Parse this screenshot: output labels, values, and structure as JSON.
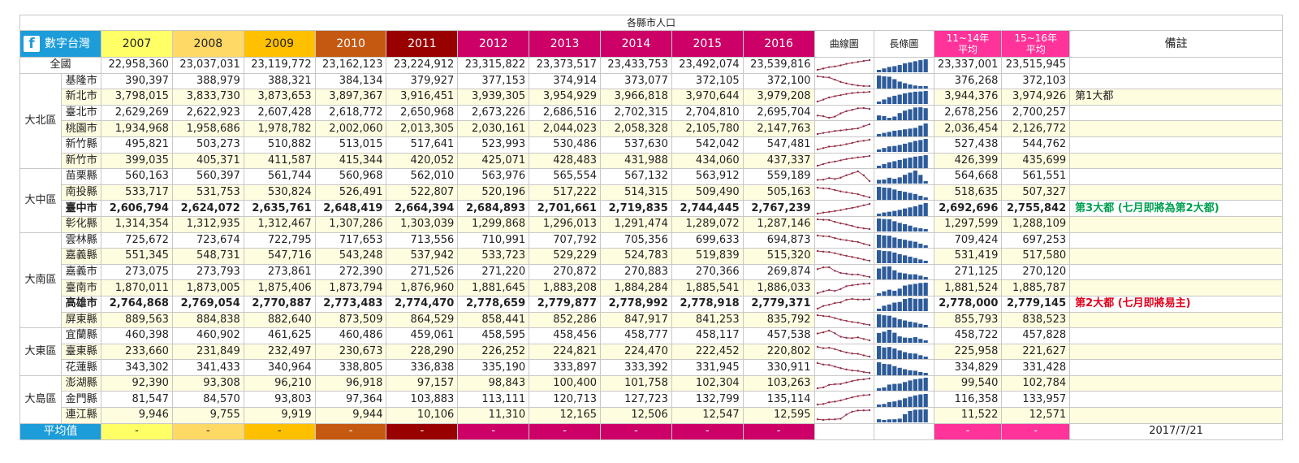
{
  "title": "各縣市人口",
  "brand": "數字台灣",
  "years": [
    "2007",
    "2008",
    "2009",
    "2010",
    "2011",
    "2012",
    "2013",
    "2014",
    "2015",
    "2016"
  ],
  "year_colors": [
    "#ffff66",
    "#ffd966",
    "#ffc000",
    "#c65911",
    "#990000",
    "#cc0066",
    "#cc0066",
    "#cc0066",
    "#cc0066",
    "#cc0066"
  ],
  "year_text_colors": [
    "#222",
    "#222",
    "#222",
    "#fff",
    "#fff",
    "#fff",
    "#fff",
    "#fff",
    "#fff",
    "#fff"
  ],
  "col_line": "曲線圖",
  "col_bar": "長條圖",
  "col_avg1": [
    "11~14年",
    "平均"
  ],
  "col_avg2": [
    "15~16年",
    "平均"
  ],
  "col_note": "備註",
  "accent_avg": "#ff3399",
  "brand_color": "#1c9dd9",
  "rows": [
    {
      "region": "全國",
      "name": "全國",
      "values": [
        22958360,
        23037031,
        23119772,
        23162123,
        23224912,
        23315822,
        23373517,
        23433753,
        23492074,
        23539816
      ],
      "avg1": "23,337,001",
      "avg2": "23,515,945",
      "note": ""
    },
    {
      "region": "大北區",
      "name": "基隆市",
      "values": [
        390397,
        388979,
        388321,
        384134,
        379927,
        377153,
        374914,
        373077,
        372105,
        372100
      ],
      "avg1": "376,268",
      "avg2": "372,103",
      "note": ""
    },
    {
      "region": "大北區",
      "name": "新北市",
      "values": [
        3798015,
        3833730,
        3873653,
        3897367,
        3916451,
        3939305,
        3954929,
        3966818,
        3970644,
        3979208
      ],
      "avg1": "3,944,376",
      "avg2": "3,974,926",
      "note": "第1大都"
    },
    {
      "region": "大北區",
      "name": "臺北市",
      "values": [
        2629269,
        2622923,
        2607428,
        2618772,
        2650968,
        2673226,
        2686516,
        2702315,
        2704810,
        2695704
      ],
      "avg1": "2,678,256",
      "avg2": "2,700,257",
      "note": ""
    },
    {
      "region": "大北區",
      "name": "桃園市",
      "values": [
        1934968,
        1958686,
        1978782,
        2002060,
        2013305,
        2030161,
        2044023,
        2058328,
        2105780,
        2147763
      ],
      "avg1": "2,036,454",
      "avg2": "2,126,772",
      "note": ""
    },
    {
      "region": "大北區",
      "name": "新竹縣",
      "values": [
        495821,
        503273,
        510882,
        513015,
        517641,
        523993,
        530486,
        537630,
        542042,
        547481
      ],
      "avg1": "527,438",
      "avg2": "544,762",
      "note": ""
    },
    {
      "region": "大北區",
      "name": "新竹市",
      "values": [
        399035,
        405371,
        411587,
        415344,
        420052,
        425071,
        428483,
        431988,
        434060,
        437337
      ],
      "avg1": "426,399",
      "avg2": "435,699",
      "note": ""
    },
    {
      "region": "大中區",
      "name": "苗栗縣",
      "values": [
        560163,
        560397,
        561744,
        560968,
        562010,
        563976,
        565554,
        567132,
        563912,
        559189
      ],
      "avg1": "564,668",
      "avg2": "561,551",
      "note": ""
    },
    {
      "region": "大中區",
      "name": "南投縣",
      "values": [
        533717,
        531753,
        530824,
        526491,
        522807,
        520196,
        517222,
        514315,
        509490,
        505163
      ],
      "avg1": "518,635",
      "avg2": "507,327",
      "note": ""
    },
    {
      "region": "大中區",
      "name": "臺中市",
      "values": [
        2606794,
        2624072,
        2635761,
        2648419,
        2664394,
        2684893,
        2701661,
        2719835,
        2744445,
        2767239
      ],
      "avg1": "2,692,696",
      "avg2": "2,755,842",
      "note": "第3大都 (七月即將為第2大都)",
      "bold": true,
      "note_color": "#00a050"
    },
    {
      "region": "大中區",
      "name": "彰化縣",
      "values": [
        1314354,
        1312935,
        1312467,
        1307286,
        1303039,
        1299868,
        1296013,
        1291474,
        1289072,
        1287146
      ],
      "avg1": "1,297,599",
      "avg2": "1,288,109",
      "note": ""
    },
    {
      "region": "大南區",
      "name": "雲林縣",
      "values": [
        725672,
        723674,
        722795,
        717653,
        713556,
        710991,
        707792,
        705356,
        699633,
        694873
      ],
      "avg1": "709,424",
      "avg2": "697,253",
      "note": ""
    },
    {
      "region": "大南區",
      "name": "嘉義縣",
      "values": [
        551345,
        548731,
        547716,
        543248,
        537942,
        533723,
        529229,
        524783,
        519839,
        515320
      ],
      "avg1": "531,419",
      "avg2": "517,580",
      "note": ""
    },
    {
      "region": "大南區",
      "name": "嘉義市",
      "values": [
        273075,
        273793,
        273861,
        272390,
        271526,
        271220,
        270872,
        270883,
        270366,
        269874
      ],
      "avg1": "271,125",
      "avg2": "270,120",
      "note": ""
    },
    {
      "region": "大南區",
      "name": "臺南市",
      "values": [
        1870011,
        1873005,
        1875406,
        1873794,
        1876960,
        1881645,
        1883208,
        1884284,
        1885541,
        1886033
      ],
      "avg1": "1,881,524",
      "avg2": "1,885,787",
      "note": ""
    },
    {
      "region": "大南區",
      "name": "高雄市",
      "values": [
        2764868,
        2769054,
        2770887,
        2773483,
        2774470,
        2778659,
        2779877,
        2778992,
        2778918,
        2779371
      ],
      "avg1": "2,778,000",
      "avg2": "2,779,145",
      "note": "第2大都 (七月即將易主)",
      "bold": true,
      "note_color": "#e0001a"
    },
    {
      "region": "大南區",
      "name": "屏東縣",
      "values": [
        889563,
        884838,
        882640,
        873509,
        864529,
        858441,
        852286,
        847917,
        841253,
        835792
      ],
      "avg1": "855,793",
      "avg2": "838,523",
      "note": ""
    },
    {
      "region": "大東區",
      "name": "宜蘭縣",
      "values": [
        460398,
        460902,
        461625,
        460486,
        459061,
        458595,
        458456,
        458777,
        458117,
        457538
      ],
      "avg1": "458,722",
      "avg2": "457,828",
      "note": ""
    },
    {
      "region": "大東區",
      "name": "臺東縣",
      "values": [
        233660,
        231849,
        232497,
        230673,
        228290,
        226252,
        224821,
        224470,
        222452,
        220802
      ],
      "avg1": "225,958",
      "avg2": "221,627",
      "note": ""
    },
    {
      "region": "大東區",
      "name": "花蓮縣",
      "values": [
        343302,
        341433,
        340964,
        338805,
        336838,
        335190,
        333897,
        333392,
        331945,
        330911
      ],
      "avg1": "334,829",
      "avg2": "331,428",
      "note": ""
    },
    {
      "region": "大島區",
      "name": "澎湖縣",
      "values": [
        92390,
        93308,
        96210,
        96918,
        97157,
        98843,
        100400,
        101758,
        102304,
        103263
      ],
      "avg1": "99,540",
      "avg2": "102,784",
      "note": ""
    },
    {
      "region": "大島區",
      "name": "金門縣",
      "values": [
        81547,
        84570,
        93803,
        97364,
        103883,
        113111,
        120713,
        127723,
        132799,
        135114
      ],
      "avg1": "116,358",
      "avg2": "133,957",
      "note": ""
    },
    {
      "region": "大島區",
      "name": "連江縣",
      "values": [
        9946,
        9755,
        9919,
        9944,
        10106,
        11310,
        12165,
        12506,
        12547,
        12595
      ],
      "avg1": "11,522",
      "avg2": "12,571",
      "note": ""
    }
  ],
  "regions": [
    {
      "name": "大北區",
      "span": 6
    },
    {
      "name": "大中區",
      "span": 4
    },
    {
      "name": "大南區",
      "span": 6
    },
    {
      "name": "大東區",
      "span": 3
    },
    {
      "name": "大島區",
      "span": 3
    }
  ],
  "avg_label": "平均值",
  "avg_dash": "-",
  "date": "2017/7/21"
}
